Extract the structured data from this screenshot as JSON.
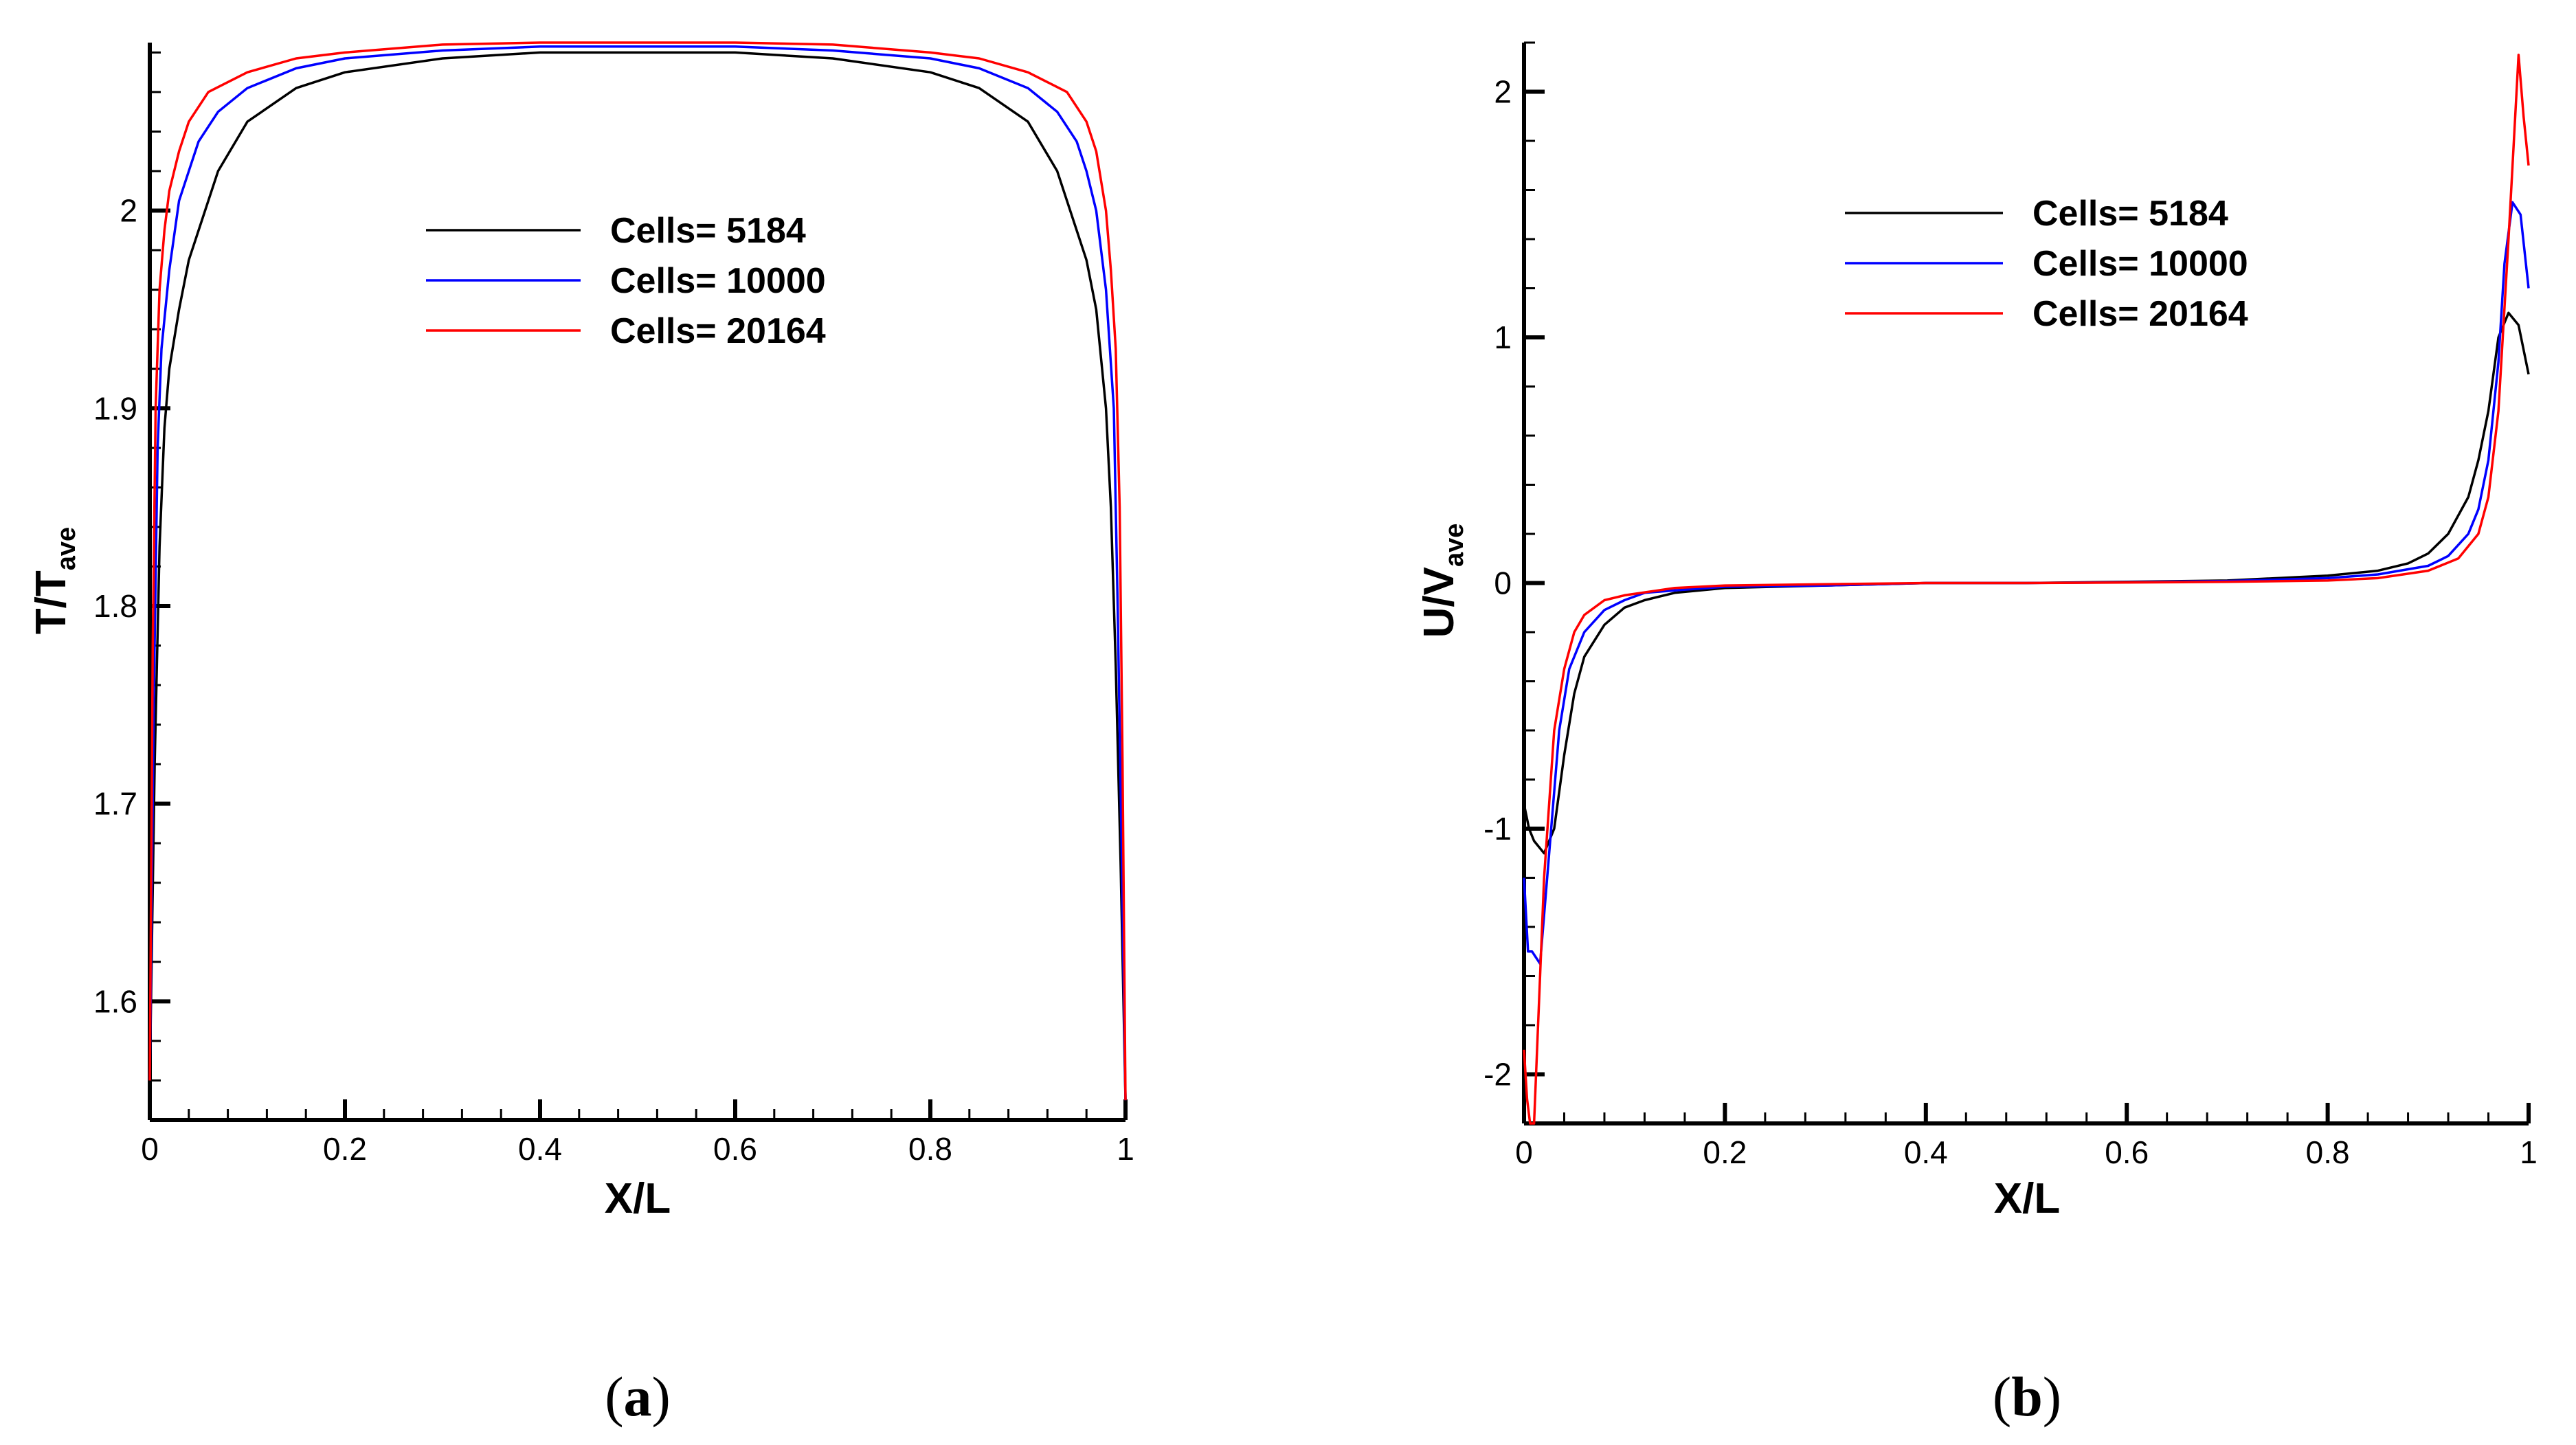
{
  "chart_data": [
    {
      "panel": "a",
      "caption": "(a)",
      "caption_letter": "a",
      "type": "line",
      "xlabel": "X/L",
      "ylabel_main": "T/T",
      "ylabel_sub": "ave",
      "xlim": [
        0,
        1
      ],
      "ylim": [
        1.54,
        2.085
      ],
      "xticks": [
        0,
        0.2,
        0.4,
        0.6,
        0.8,
        1
      ],
      "xtick_labels": [
        "0",
        "0.2",
        "0.4",
        "0.6",
        "0.8",
        "1"
      ],
      "yticks": [
        1.6,
        1.7,
        1.8,
        1.9,
        2.0
      ],
      "ytick_labels": [
        "1.6",
        "1.7",
        "1.8",
        "1.9",
        "2"
      ],
      "series": [
        {
          "name": "Cells= 5184",
          "color": "#000000",
          "x": [
            0,
            0.005,
            0.01,
            0.015,
            0.02,
            0.03,
            0.04,
            0.05,
            0.07,
            0.1,
            0.15,
            0.2,
            0.3,
            0.4,
            0.5,
            0.6,
            0.7,
            0.8,
            0.85,
            0.9,
            0.93,
            0.95,
            0.96,
            0.97,
            0.98,
            0.985,
            0.99,
            0.995,
            1.0
          ],
          "y": [
            1.56,
            1.72,
            1.83,
            1.89,
            1.92,
            1.95,
            1.975,
            1.99,
            2.02,
            2.045,
            2.062,
            2.07,
            2.077,
            2.08,
            2.08,
            2.08,
            2.077,
            2.07,
            2.062,
            2.045,
            2.02,
            1.99,
            1.975,
            1.95,
            1.9,
            1.85,
            1.77,
            1.67,
            1.55
          ]
        },
        {
          "name": "Cells= 10000",
          "color": "#0000ff",
          "x": [
            0,
            0.004,
            0.008,
            0.012,
            0.02,
            0.03,
            0.04,
            0.05,
            0.07,
            0.1,
            0.15,
            0.2,
            0.3,
            0.4,
            0.5,
            0.6,
            0.7,
            0.8,
            0.85,
            0.9,
            0.93,
            0.95,
            0.96,
            0.97,
            0.98,
            0.988,
            0.992,
            0.996,
            1.0
          ],
          "y": [
            1.56,
            1.75,
            1.88,
            1.93,
            1.97,
            2.005,
            2.02,
            2.035,
            2.05,
            2.062,
            2.072,
            2.077,
            2.081,
            2.083,
            2.083,
            2.083,
            2.081,
            2.077,
            2.072,
            2.062,
            2.05,
            2.035,
            2.02,
            2.0,
            1.96,
            1.9,
            1.8,
            1.68,
            1.55
          ]
        },
        {
          "name": "Cells= 20164",
          "color": "#ff0000",
          "x": [
            0,
            0.003,
            0.006,
            0.01,
            0.015,
            0.02,
            0.03,
            0.04,
            0.06,
            0.1,
            0.15,
            0.2,
            0.3,
            0.4,
            0.5,
            0.6,
            0.7,
            0.8,
            0.85,
            0.9,
            0.94,
            0.96,
            0.97,
            0.98,
            0.985,
            0.99,
            0.994,
            0.997,
            1.0
          ],
          "y": [
            1.56,
            1.78,
            1.9,
            1.96,
            1.99,
            2.01,
            2.03,
            2.045,
            2.06,
            2.07,
            2.077,
            2.08,
            2.084,
            2.085,
            2.085,
            2.085,
            2.084,
            2.08,
            2.077,
            2.07,
            2.06,
            2.045,
            2.03,
            2.0,
            1.97,
            1.93,
            1.85,
            1.72,
            1.55
          ]
        }
      ]
    },
    {
      "panel": "b",
      "caption": "(b)",
      "caption_letter": "b",
      "type": "line",
      "xlabel": "X/L",
      "ylabel_main": "U/V",
      "ylabel_sub": "ave",
      "xlim": [
        0,
        1
      ],
      "ylim": [
        -2.2,
        2.2
      ],
      "xticks": [
        0,
        0.2,
        0.4,
        0.6,
        0.8,
        1
      ],
      "xtick_labels": [
        "0",
        "0.2",
        "0.4",
        "0.6",
        "0.8",
        "1"
      ],
      "yticks": [
        -2,
        -1,
        0,
        1,
        2
      ],
      "ytick_labels": [
        "-2",
        "-1",
        "0",
        "1",
        "2"
      ],
      "series": [
        {
          "name": "Cells= 5184",
          "color": "#000000",
          "x": [
            0,
            0.005,
            0.01,
            0.02,
            0.03,
            0.04,
            0.05,
            0.06,
            0.08,
            0.1,
            0.12,
            0.15,
            0.2,
            0.3,
            0.4,
            0.5,
            0.6,
            0.7,
            0.8,
            0.85,
            0.88,
            0.9,
            0.92,
            0.94,
            0.95,
            0.96,
            0.97,
            0.98,
            0.99,
            1.0
          ],
          "y": [
            -0.9,
            -1.0,
            -1.05,
            -1.1,
            -1.0,
            -0.7,
            -0.45,
            -0.3,
            -0.17,
            -0.1,
            -0.07,
            -0.04,
            -0.02,
            -0.01,
            0,
            0,
            0.005,
            0.01,
            0.03,
            0.05,
            0.08,
            0.12,
            0.2,
            0.35,
            0.5,
            0.7,
            1.0,
            1.1,
            1.05,
            0.85
          ]
        },
        {
          "name": "Cells= 10000",
          "color": "#0000ff",
          "x": [
            0,
            0.004,
            0.008,
            0.016,
            0.025,
            0.035,
            0.045,
            0.06,
            0.08,
            0.1,
            0.12,
            0.15,
            0.2,
            0.3,
            0.4,
            0.5,
            0.6,
            0.7,
            0.8,
            0.85,
            0.9,
            0.92,
            0.94,
            0.95,
            0.96,
            0.97,
            0.976,
            0.984,
            0.992,
            1.0
          ],
          "y": [
            -1.2,
            -1.5,
            -1.5,
            -1.55,
            -1.1,
            -0.6,
            -0.35,
            -0.2,
            -0.11,
            -0.07,
            -0.04,
            -0.03,
            -0.015,
            -0.01,
            0,
            0,
            0.003,
            0.008,
            0.02,
            0.035,
            0.07,
            0.11,
            0.2,
            0.3,
            0.5,
            0.9,
            1.3,
            1.55,
            1.5,
            1.2
          ]
        },
        {
          "name": "Cells= 20164",
          "color": "#ff0000",
          "x": [
            0,
            0.003,
            0.006,
            0.01,
            0.015,
            0.02,
            0.03,
            0.04,
            0.05,
            0.06,
            0.08,
            0.1,
            0.15,
            0.2,
            0.3,
            0.4,
            0.5,
            0.6,
            0.7,
            0.8,
            0.85,
            0.9,
            0.93,
            0.95,
            0.96,
            0.97,
            0.98,
            0.99,
            0.995,
            1.0
          ],
          "y": [
            -1.9,
            -2.1,
            -2.2,
            -2.2,
            -1.7,
            -1.2,
            -0.6,
            -0.35,
            -0.2,
            -0.13,
            -0.07,
            -0.05,
            -0.02,
            -0.01,
            -0.005,
            0,
            0,
            0.002,
            0.005,
            0.01,
            0.02,
            0.05,
            0.1,
            0.2,
            0.35,
            0.7,
            1.4,
            2.15,
            1.9,
            1.7
          ]
        }
      ]
    }
  ]
}
